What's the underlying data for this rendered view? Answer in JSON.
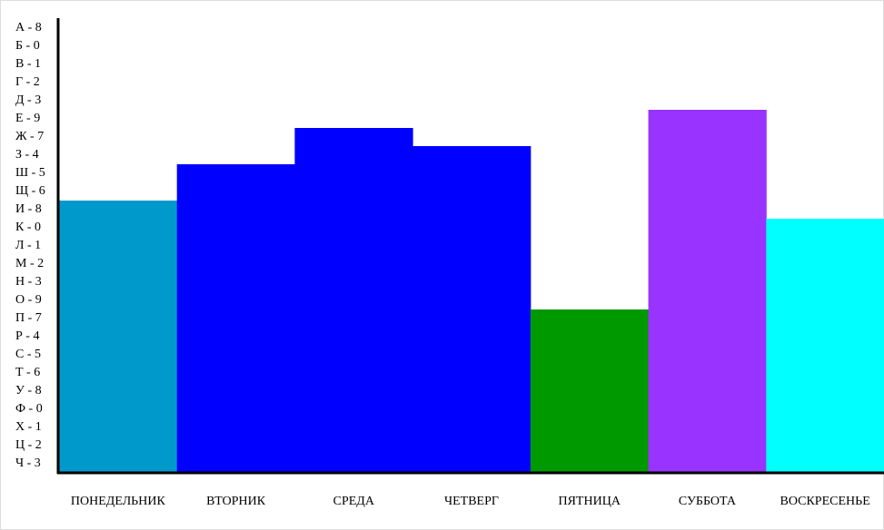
{
  "chart_data": {
    "type": "bar",
    "categories": [
      "ПОНЕДЕЛЬНИК",
      "ВТОРНИК",
      "СРЕДА",
      "ЧЕТВЕРГ",
      "ПЯТНИЦА",
      "СУББОТА",
      "ВОСКРЕСЕНЬЕ"
    ],
    "values": [
      15,
      17,
      19,
      18,
      9,
      20,
      14
    ],
    "colors": [
      "#0099cc",
      "#0000ff",
      "#0000ff",
      "#0000ff",
      "#009900",
      "#9933ff",
      "#00ffff"
    ],
    "ylim": [
      0,
      25
    ],
    "yticks": [
      {
        "value": 24.5,
        "label": "А - 8"
      },
      {
        "value": 23.5,
        "label": "Б - 0"
      },
      {
        "value": 22.5,
        "label": "В - 1"
      },
      {
        "value": 21.5,
        "label": "Г - 2"
      },
      {
        "value": 20.5,
        "label": "Д - 3"
      },
      {
        "value": 19.5,
        "label": "Е - 9"
      },
      {
        "value": 18.5,
        "label": "Ж - 7"
      },
      {
        "value": 17.5,
        "label": "З - 4"
      },
      {
        "value": 16.5,
        "label": "Ш - 5"
      },
      {
        "value": 15.5,
        "label": "Щ - 6"
      },
      {
        "value": 14.5,
        "label": "И - 8"
      },
      {
        "value": 13.5,
        "label": "К - 0"
      },
      {
        "value": 12.5,
        "label": "Л - 1"
      },
      {
        "value": 11.5,
        "label": "М - 2"
      },
      {
        "value": 10.5,
        "label": "Н - 3"
      },
      {
        "value": 9.5,
        "label": "О - 9"
      },
      {
        "value": 8.5,
        "label": "П - 7"
      },
      {
        "value": 7.5,
        "label": "Р - 4"
      },
      {
        "value": 6.5,
        "label": "С - 5"
      },
      {
        "value": 5.5,
        "label": "Т - 6"
      },
      {
        "value": 4.5,
        "label": "У - 8"
      },
      {
        "value": 3.5,
        "label": "Ф - 0"
      },
      {
        "value": 2.5,
        "label": "Х - 1"
      },
      {
        "value": 1.5,
        "label": "Ц - 2"
      },
      {
        "value": 0.5,
        "label": "Ч - 3"
      }
    ],
    "grid": false
  }
}
